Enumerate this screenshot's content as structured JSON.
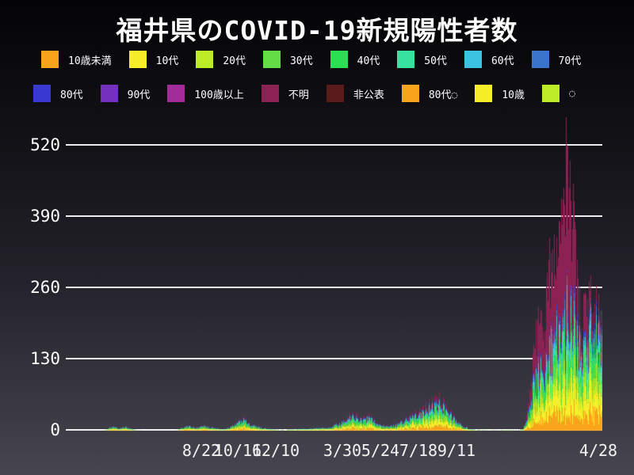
{
  "title": "福井県のCOVID-19新規陽性者数",
  "colors": {
    "background_top": "#040406",
    "background_bottom": "#47454f",
    "grid": "#ededed",
    "text": "#ffffff"
  },
  "legend": {
    "rows": [
      [
        {
          "label": "10歳未満",
          "color": "#f9a41b"
        },
        {
          "label": "10代",
          "color": "#f4ef28"
        },
        {
          "label": "20代",
          "color": "#bcec28"
        },
        {
          "label": "30代",
          "color": "#63dc46"
        },
        {
          "label": "40代",
          "color": "#2bde53"
        },
        {
          "label": "50代",
          "color": "#36e29e"
        },
        {
          "label": "60代",
          "color": "#3cc3df"
        },
        {
          "label": "70代",
          "color": "#3a74cb"
        }
      ],
      [
        {
          "label": "80代",
          "color": "#3a39d2"
        },
        {
          "label": "90代",
          "color": "#7430bf"
        },
        {
          "label": "100歳以上",
          "color": "#a32d98"
        },
        {
          "label": "不明",
          "color": "#8c2254"
        },
        {
          "label": "非公表",
          "color": "#5a1b1b"
        },
        {
          "label": "80代◌",
          "color": "#f9a41b"
        },
        {
          "label": "10歳",
          "color": "#f4ef28"
        },
        {
          "label": "◌",
          "color": "#bcec28"
        }
      ]
    ]
  },
  "chart_data": {
    "type": "bar",
    "stacked": true,
    "title": "福井県のCOVID-19新規陽性者数",
    "xlabel": "",
    "ylabel": "",
    "y_axis": {
      "ticks": [
        0,
        130,
        260,
        390,
        520
      ],
      "ylim": [
        0,
        560
      ]
    },
    "x_axis": {
      "tick_labels": [
        {
          "label": "8/22",
          "pos": 0.2526
        },
        {
          "label": "10/16",
          "pos": 0.3205
        },
        {
          "label": "12/10",
          "pos": 0.3914
        },
        {
          "label": "3/30",
          "pos": 0.5155
        },
        {
          "label": "5/24",
          "pos": 0.5864
        },
        {
          "label": "7/18",
          "pos": 0.6573
        },
        {
          "label": "9/11",
          "pos": 0.7282
        },
        {
          "label": "4/28",
          "pos": 0.9926
        }
      ]
    },
    "legend_position": "top",
    "grid": true,
    "days": 770,
    "series": [
      {
        "name": "10歳未満",
        "color": "#f9a41b",
        "weight": 0.13
      },
      {
        "name": "10代",
        "color": "#f4ef28",
        "weight": 0.17
      },
      {
        "name": "20代",
        "color": "#bcec28",
        "weight": 0.09
      },
      {
        "name": "30代",
        "color": "#63dc46",
        "weight": 0.1
      },
      {
        "name": "40代",
        "color": "#2bde53",
        "weight": 0.1
      },
      {
        "name": "50代",
        "color": "#36e29e",
        "weight": 0.07
      },
      {
        "name": "60代",
        "color": "#3cc3df",
        "weight": 0.055
      },
      {
        "name": "70代",
        "color": "#3a74cb",
        "weight": 0.04
      },
      {
        "name": "80代",
        "color": "#3a39d2",
        "weight": 0.025
      },
      {
        "name": "90代",
        "color": "#7430bf",
        "weight": 0.012
      },
      {
        "name": "100歳以上",
        "color": "#a32d98",
        "weight": 0.005
      },
      {
        "name": "非公表",
        "color": "#5a1b1b",
        "weight": 0.003
      },
      {
        "name": "不明",
        "color": "#8c2254",
        "weight": 0
      }
    ],
    "envelope_note": "daily totals estimated from pixels: [time 0-1, total cases, fraction 不明]",
    "envelope": [
      [
        0.0,
        0,
        0.05
      ],
      [
        0.07,
        0,
        0.05
      ],
      [
        0.078,
        4,
        0.05
      ],
      [
        0.088,
        9,
        0.05
      ],
      [
        0.098,
        5,
        0.05
      ],
      [
        0.11,
        8,
        0.05
      ],
      [
        0.122,
        3,
        0.05
      ],
      [
        0.135,
        1,
        0.05
      ],
      [
        0.15,
        0,
        0.05
      ],
      [
        0.205,
        0,
        0.05
      ],
      [
        0.215,
        5,
        0.05
      ],
      [
        0.228,
        9,
        0.05
      ],
      [
        0.242,
        5,
        0.05
      ],
      [
        0.258,
        10,
        0.05
      ],
      [
        0.272,
        6,
        0.05
      ],
      [
        0.288,
        3,
        0.05
      ],
      [
        0.305,
        5,
        0.05
      ],
      [
        0.318,
        15,
        0.06
      ],
      [
        0.33,
        24,
        0.08
      ],
      [
        0.342,
        14,
        0.06
      ],
      [
        0.355,
        8,
        0.05
      ],
      [
        0.375,
        4,
        0.05
      ],
      [
        0.4,
        2,
        0.05
      ],
      [
        0.43,
        3,
        0.05
      ],
      [
        0.46,
        4,
        0.05
      ],
      [
        0.49,
        6,
        0.05
      ],
      [
        0.51,
        14,
        0.07
      ],
      [
        0.525,
        24,
        0.09
      ],
      [
        0.538,
        30,
        0.1
      ],
      [
        0.552,
        22,
        0.08
      ],
      [
        0.565,
        26,
        0.09
      ],
      [
        0.58,
        14,
        0.06
      ],
      [
        0.6,
        8,
        0.05
      ],
      [
        0.618,
        12,
        0.06
      ],
      [
        0.635,
        22,
        0.08
      ],
      [
        0.652,
        30,
        0.1
      ],
      [
        0.668,
        40,
        0.12
      ],
      [
        0.682,
        50,
        0.12
      ],
      [
        0.695,
        58,
        0.13
      ],
      [
        0.705,
        48,
        0.11
      ],
      [
        0.715,
        34,
        0.09
      ],
      [
        0.728,
        20,
        0.07
      ],
      [
        0.74,
        10,
        0.05
      ],
      [
        0.752,
        4,
        0.05
      ],
      [
        0.765,
        2,
        0.05
      ],
      [
        0.78,
        1,
        0.05
      ],
      [
        0.8,
        1,
        0.05
      ],
      [
        0.82,
        1,
        0.05
      ],
      [
        0.84,
        1,
        0.08
      ],
      [
        0.852,
        3,
        0.12
      ],
      [
        0.858,
        15,
        0.2
      ],
      [
        0.864,
        55,
        0.3
      ],
      [
        0.87,
        110,
        0.38
      ],
      [
        0.877,
        160,
        0.42
      ],
      [
        0.884,
        195,
        0.42
      ],
      [
        0.89,
        175,
        0.4
      ],
      [
        0.897,
        230,
        0.42
      ],
      [
        0.904,
        310,
        0.46
      ],
      [
        0.91,
        340,
        0.46
      ],
      [
        0.916,
        290,
        0.42
      ],
      [
        0.922,
        330,
        0.44
      ],
      [
        0.928,
        390,
        0.46
      ],
      [
        0.933,
        480,
        0.5
      ],
      [
        0.9355,
        557,
        0.52
      ],
      [
        0.938,
        470,
        0.5
      ],
      [
        0.943,
        400,
        0.46
      ],
      [
        0.95,
        310,
        0.4
      ],
      [
        0.957,
        225,
        0.3
      ],
      [
        0.963,
        160,
        0.22
      ],
      [
        0.969,
        235,
        0.26
      ],
      [
        0.975,
        210,
        0.2
      ],
      [
        0.981,
        235,
        0.16
      ],
      [
        0.987,
        215,
        0.13
      ],
      [
        0.993,
        200,
        0.11
      ],
      [
        1.0,
        190,
        0.1
      ]
    ]
  }
}
